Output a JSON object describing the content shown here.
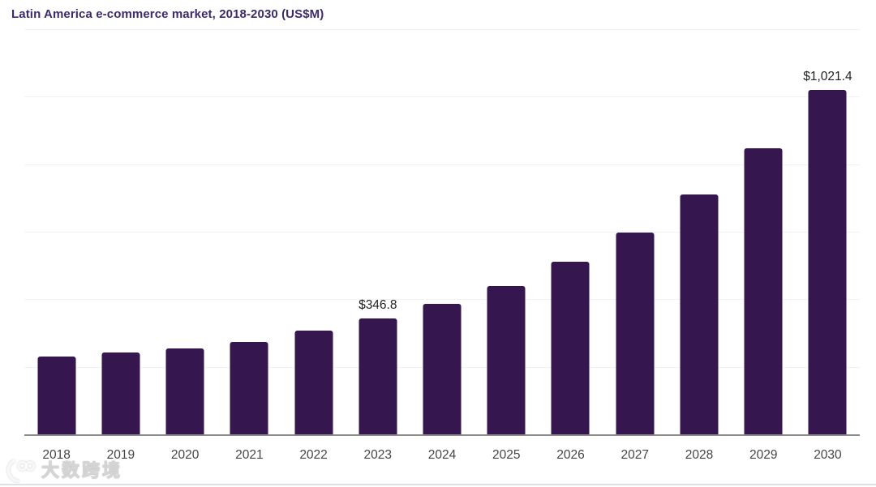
{
  "header": {
    "title": "Latin America e-commerce market, 2018-2030 (US$M)"
  },
  "chart_data": {
    "type": "bar",
    "title": "Latin America e-commerce market, 2018-2030 (US$M)",
    "xlabel": "",
    "ylabel": "",
    "categories": [
      "2018",
      "2019",
      "2020",
      "2021",
      "2022",
      "2023",
      "2024",
      "2025",
      "2026",
      "2027",
      "2028",
      "2029",
      "2030"
    ],
    "values": [
      234,
      246,
      258,
      275,
      310,
      346.8,
      388,
      442,
      513,
      599,
      712,
      849,
      1021.4
    ],
    "point_labels": [
      "",
      "",
      "",
      "",
      "",
      "$346.8",
      "",
      "",
      "",
      "",
      "",
      "",
      "$1,021.4"
    ],
    "ylim": [
      0,
      1200
    ],
    "gridline_values": [
      200,
      400,
      600,
      800,
      1000,
      1200
    ],
    "grid": true,
    "legend": false
  },
  "colors": {
    "bar": "#35164F",
    "title_text": "#3B2B6B",
    "axis_line": "#8A8A8A",
    "gridline": "#F2F2F2",
    "tick_label": "#454545",
    "data_label": "#222222",
    "bottom_rule": "#DAE2E8"
  },
  "watermark": {
    "logo": "100-logo",
    "text": "大数跨境"
  }
}
